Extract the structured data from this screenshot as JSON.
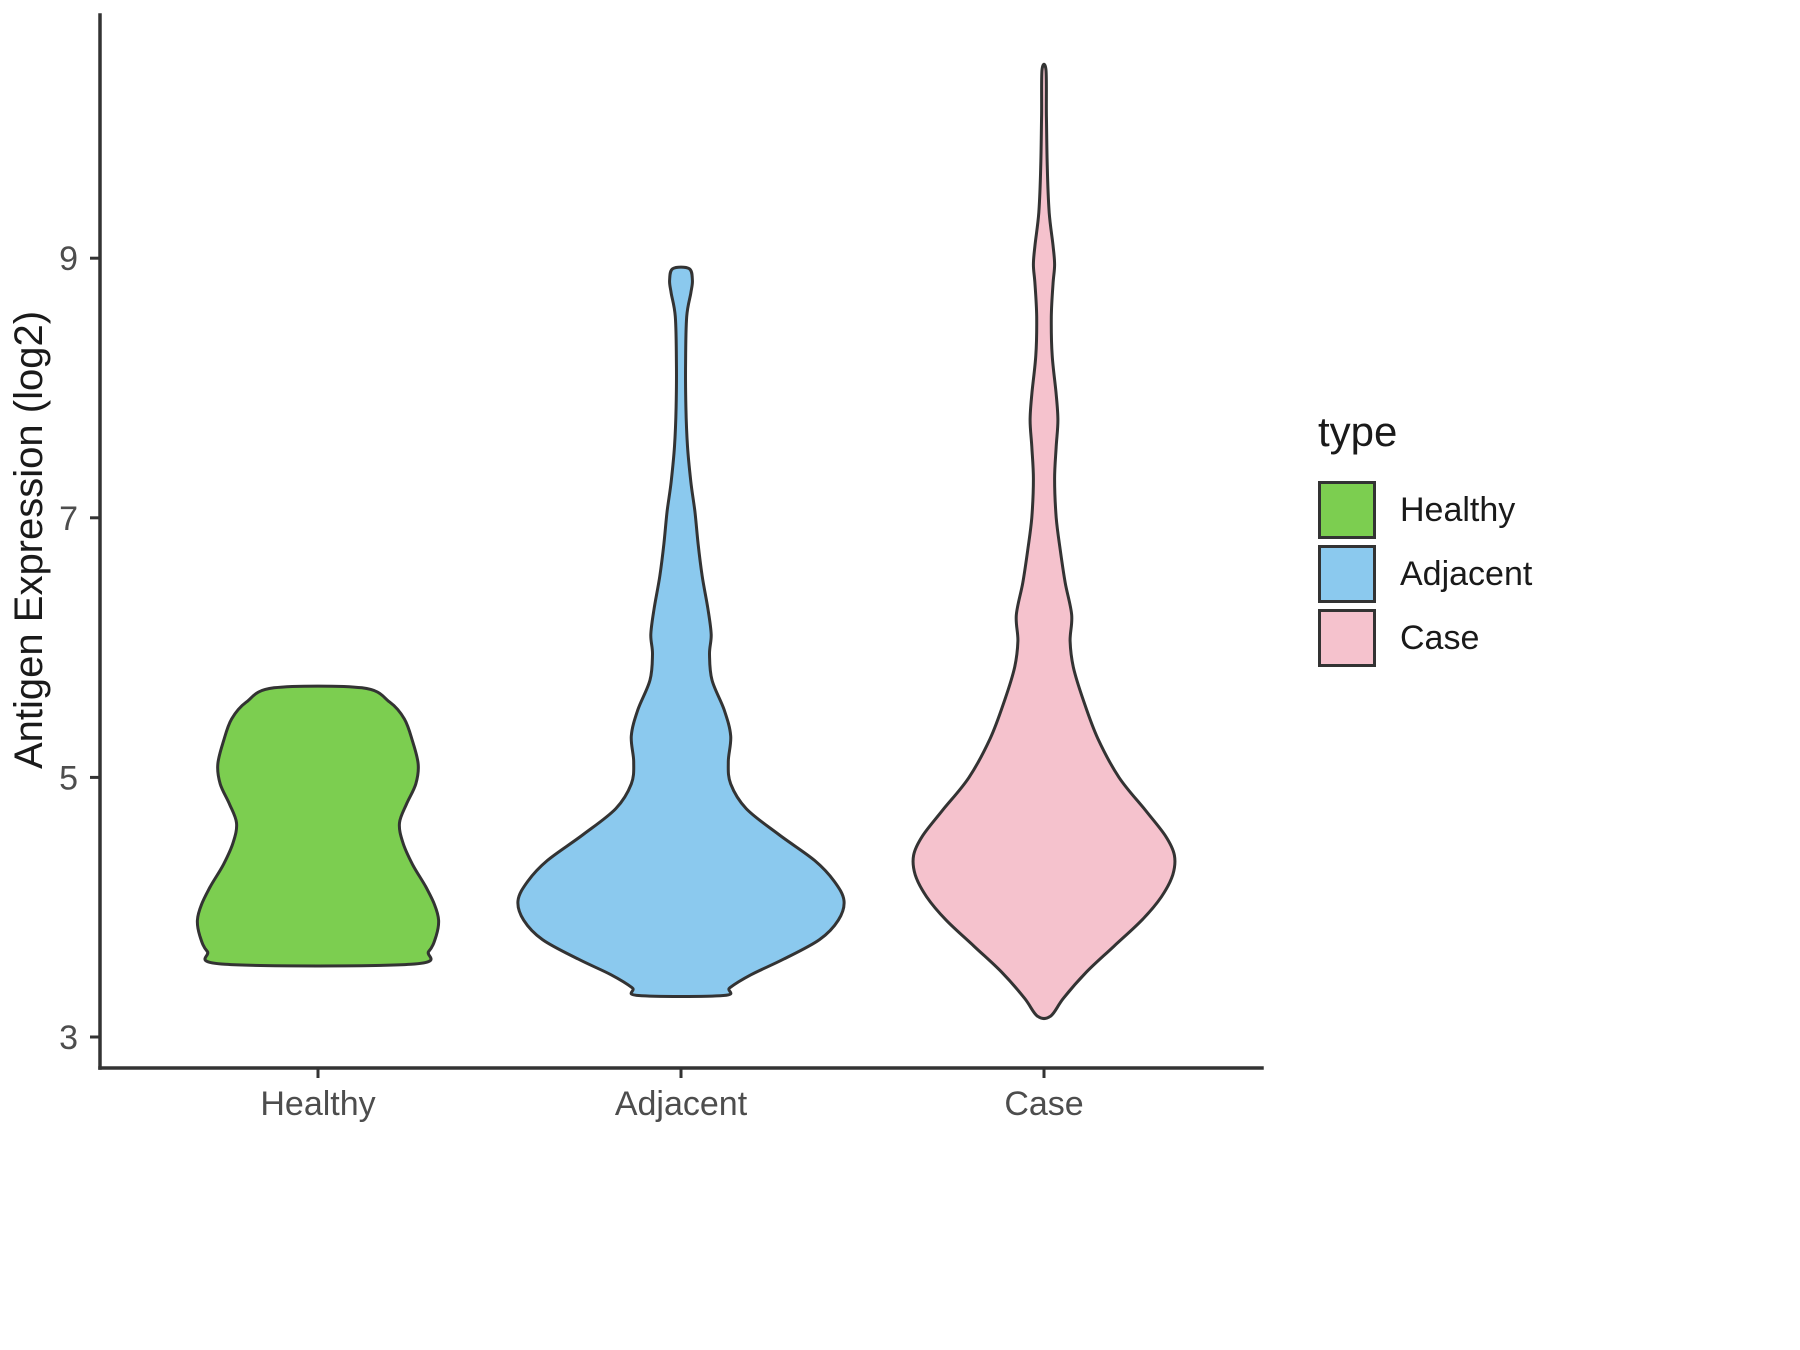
{
  "figure": {
    "background": "#FFFFFF"
  },
  "chart_data": {
    "type": "violin",
    "title": "",
    "xlabel": "",
    "ylabel": "Antigen Expression (log2)",
    "categories": [
      "Healthy",
      "Adjacent",
      "Case"
    ],
    "y_ticks": [
      "3",
      "5",
      "7",
      "9"
    ],
    "y_tick_values": [
      3,
      5,
      7,
      9
    ],
    "ylim": [
      2.78,
      10.85
    ],
    "grid": "off",
    "legend": {
      "title": "type",
      "position": "right",
      "entries": [
        {
          "label": "Healthy",
          "color": "#7CCE50"
        },
        {
          "label": "Adjacent",
          "color": "#8BC9EE"
        },
        {
          "label": "Case",
          "color": "#F5C2CD"
        }
      ]
    },
    "style": {
      "outline_color": "#333333",
      "axis_color": "#333333",
      "tick_label_color": "#4D4D4D",
      "axis_title_color": "#1A1A1A"
    },
    "series": [
      {
        "name": "Healthy",
        "color": "#7CCE50",
        "value_range": [
          3.54,
          5.69
        ],
        "profile": [
          [
            5.69,
            0.27
          ],
          [
            5.58,
            0.44
          ],
          [
            5.45,
            0.53
          ],
          [
            5.28,
            0.58
          ],
          [
            5.1,
            0.615
          ],
          [
            4.95,
            0.6
          ],
          [
            4.8,
            0.545
          ],
          [
            4.65,
            0.5
          ],
          [
            4.5,
            0.52
          ],
          [
            4.33,
            0.58
          ],
          [
            4.16,
            0.66
          ],
          [
            4.02,
            0.715
          ],
          [
            3.9,
            0.74
          ],
          [
            3.78,
            0.725
          ],
          [
            3.66,
            0.68
          ],
          [
            3.56,
            0.57
          ]
        ]
      },
      {
        "name": "Adjacent",
        "color": "#8BC9EE",
        "value_range": [
          3.32,
          8.92
        ],
        "profile": [
          [
            8.92,
            0.05
          ],
          [
            8.83,
            0.07
          ],
          [
            8.73,
            0.06
          ],
          [
            8.55,
            0.035
          ],
          [
            8.2,
            0.028
          ],
          [
            7.85,
            0.03
          ],
          [
            7.55,
            0.04
          ],
          [
            7.28,
            0.06
          ],
          [
            7.05,
            0.085
          ],
          [
            6.8,
            0.105
          ],
          [
            6.55,
            0.13
          ],
          [
            6.3,
            0.165
          ],
          [
            6.1,
            0.185
          ],
          [
            5.95,
            0.175
          ],
          [
            5.75,
            0.19
          ],
          [
            5.52,
            0.265
          ],
          [
            5.32,
            0.305
          ],
          [
            5.12,
            0.29
          ],
          [
            4.95,
            0.305
          ],
          [
            4.76,
            0.4
          ],
          [
            4.56,
            0.6
          ],
          [
            4.36,
            0.82
          ],
          [
            4.2,
            0.94
          ],
          [
            4.05,
            1.0
          ],
          [
            3.9,
            0.965
          ],
          [
            3.75,
            0.85
          ],
          [
            3.6,
            0.63
          ],
          [
            3.48,
            0.43
          ],
          [
            3.38,
            0.3
          ],
          [
            3.32,
            0.26
          ]
        ]
      },
      {
        "name": "Case",
        "color": "#F5C2CD",
        "value_range": [
          3.13,
          10.45
        ],
        "profile": [
          [
            10.45,
            0.012
          ],
          [
            10.1,
            0.015
          ],
          [
            9.7,
            0.02
          ],
          [
            9.35,
            0.032
          ],
          [
            9.1,
            0.055
          ],
          [
            8.95,
            0.065
          ],
          [
            8.8,
            0.055
          ],
          [
            8.55,
            0.045
          ],
          [
            8.25,
            0.05
          ],
          [
            7.95,
            0.075
          ],
          [
            7.75,
            0.085
          ],
          [
            7.55,
            0.075
          ],
          [
            7.3,
            0.065
          ],
          [
            7.0,
            0.075
          ],
          [
            6.75,
            0.1
          ],
          [
            6.5,
            0.13
          ],
          [
            6.25,
            0.17
          ],
          [
            6.05,
            0.16
          ],
          [
            5.85,
            0.18
          ],
          [
            5.6,
            0.24
          ],
          [
            5.3,
            0.33
          ],
          [
            5.0,
            0.46
          ],
          [
            4.75,
            0.62
          ],
          [
            4.55,
            0.745
          ],
          [
            4.4,
            0.8
          ],
          [
            4.25,
            0.79
          ],
          [
            4.08,
            0.72
          ],
          [
            3.9,
            0.6
          ],
          [
            3.7,
            0.43
          ],
          [
            3.5,
            0.26
          ],
          [
            3.3,
            0.12
          ],
          [
            3.16,
            0.04
          ]
        ]
      }
    ]
  }
}
